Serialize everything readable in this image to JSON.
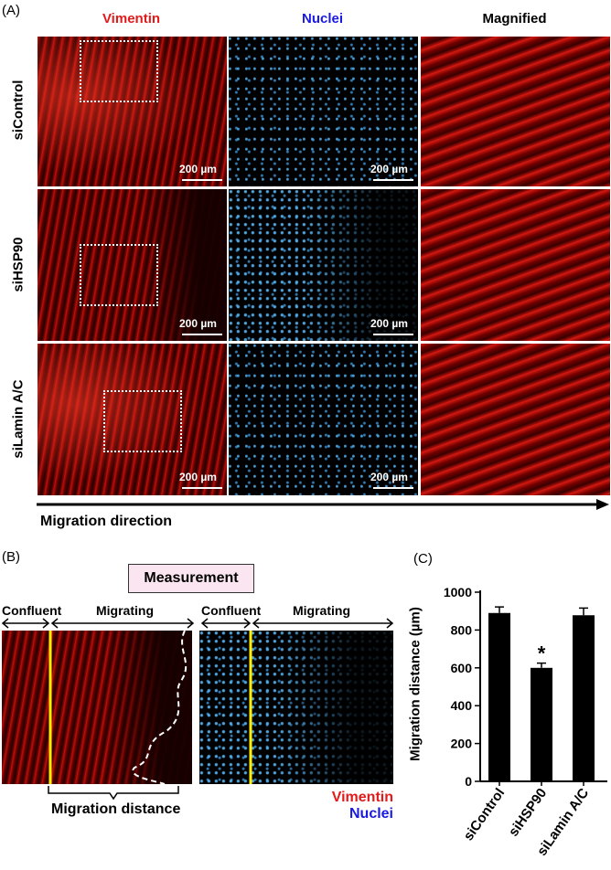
{
  "panel_a": {
    "letter": "(A)",
    "columns": [
      {
        "label": "Vimentin",
        "color": "#e21a1a"
      },
      {
        "label": "Nuclei",
        "color": "#1a1ae2"
      },
      {
        "label": "Magnified",
        "color": "#000000"
      }
    ],
    "rows": [
      "siControl",
      "siHSP90",
      "siLamin A/C"
    ],
    "scale_bar": "200 µm",
    "direction_label": "Migration direction"
  },
  "panel_b": {
    "letter": "(B)",
    "measurement_label": "Measurement",
    "confluent_label": "Confluent",
    "migrating_label": "Migrating",
    "distance_label": "Migration distance",
    "legend": [
      {
        "label": "Vimentin",
        "color": "#e21a1a"
      },
      {
        "label": "Nuclei",
        "color": "#1a1ae2"
      }
    ]
  },
  "panel_c": {
    "letter": "(C)",
    "chart_data": {
      "type": "bar",
      "categories": [
        "siControl",
        "siHSP90",
        "siLamin A/C"
      ],
      "values": [
        890,
        600,
        878
      ],
      "errors": [
        32,
        25,
        38
      ],
      "significance": [
        "",
        "*",
        ""
      ],
      "ylabel": "Migration distance (µm)",
      "ylim": [
        0,
        1000
      ],
      "yticks": [
        "0",
        "200",
        "400",
        "600",
        "800",
        "1000"
      ],
      "bar_color": "#000000",
      "grid": false
    }
  }
}
